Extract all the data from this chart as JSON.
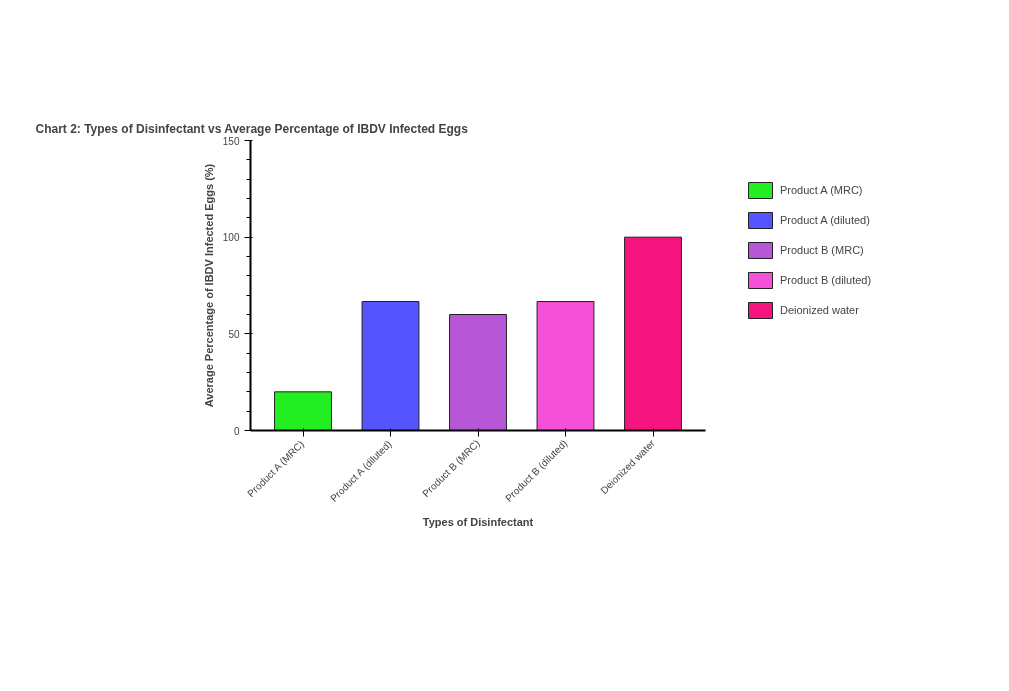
{
  "chart_data": {
    "type": "bar",
    "title": "Chart 2: Types of Disinfectant vs Average Percentage of IBDV Infected Eggs",
    "xlabel": "Types of Disinfectant",
    "ylabel": "Average Percentage of IBDV Infected Eggs (%)",
    "categories": [
      "Product A (MRC)",
      "Product A (diluted)",
      "Product B (MRC)",
      "Product B (diluted)",
      "Deionized water"
    ],
    "series": [
      {
        "name": "Product A (MRC)",
        "color": "#22ee22",
        "values": [
          20,
          null,
          null,
          null,
          null
        ]
      },
      {
        "name": "Product A (diluted)",
        "color": "#5555ff",
        "values": [
          null,
          66.7,
          null,
          null,
          null
        ]
      },
      {
        "name": "Product B (MRC)",
        "color": "#b856d8",
        "values": [
          null,
          null,
          60,
          null,
          null
        ]
      },
      {
        "name": "Product B (diluted)",
        "color": "#f550d8",
        "values": [
          null,
          null,
          null,
          66.7,
          null
        ]
      },
      {
        "name": "Deionized water",
        "color": "#f5147f",
        "values": [
          null,
          null,
          null,
          null,
          100
        ]
      }
    ],
    "ylim": [
      0,
      150
    ],
    "yticks": [
      0,
      50,
      100,
      150
    ],
    "grid": false,
    "legend": "right"
  }
}
